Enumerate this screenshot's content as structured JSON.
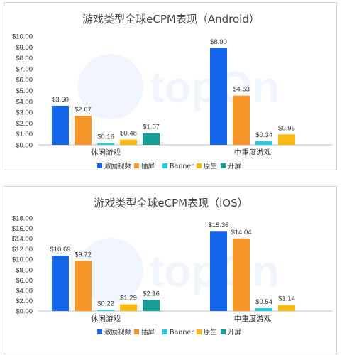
{
  "chart_data": [
    {
      "type": "bar",
      "title": "游戏类型全球eCPM表现（Android）",
      "categories": [
        "休闲游戏",
        "中重度游戏"
      ],
      "series": [
        {
          "name": "激励视频",
          "values": [
            3.6,
            8.9
          ],
          "labels": [
            "$3.60",
            "$8.90"
          ],
          "color": "#1466ea"
        },
        {
          "name": "插屏",
          "values": [
            2.67,
            4.53
          ],
          "labels": [
            "$2.67",
            "$4.53"
          ],
          "color": "#f7962b"
        },
        {
          "name": "Banner",
          "values": [
            0.16,
            0.34
          ],
          "labels": [
            "$0.16",
            "$0.34"
          ],
          "color": "#2bcbe6"
        },
        {
          "name": "原生",
          "values": [
            0.48,
            0.96
          ],
          "labels": [
            "$0.48",
            "$0.96"
          ],
          "color": "#fcb912"
        },
        {
          "name": "开屏",
          "values": [
            1.07,
            null
          ],
          "labels": [
            "$1.07",
            null
          ],
          "color": "#179d98"
        }
      ],
      "yticks": [
        "$0.00",
        "$1.00",
        "$2.00",
        "$3.00",
        "$4.00",
        "$5.00",
        "$6.00",
        "$7.00",
        "$8.00",
        "$9.00",
        "$10.00"
      ],
      "ylim": [
        0,
        10
      ],
      "ystep": 1,
      "grid": false,
      "legend_position": "bottom",
      "watermark": "topOn"
    },
    {
      "type": "bar",
      "title": "游戏类型全球eCPM表现（iOS）",
      "categories": [
        "休闲游戏",
        "中重度游戏"
      ],
      "series": [
        {
          "name": "激励视频",
          "values": [
            10.69,
            15.36
          ],
          "labels": [
            "$10.69",
            "$15.36"
          ],
          "color": "#1466ea"
        },
        {
          "name": "插屏",
          "values": [
            9.72,
            14.04
          ],
          "labels": [
            "$9.72",
            "$14.04"
          ],
          "color": "#f7962b"
        },
        {
          "name": "Banner",
          "values": [
            0.22,
            0.54
          ],
          "labels": [
            "$0.22",
            "$0.54"
          ],
          "color": "#2bcbe6"
        },
        {
          "name": "原生",
          "values": [
            1.29,
            1.14
          ],
          "labels": [
            "$1.29",
            "$1.14"
          ],
          "color": "#fcb912"
        },
        {
          "name": "开屏",
          "values": [
            2.16,
            null
          ],
          "labels": [
            "$2.16",
            null
          ],
          "color": "#179d98"
        }
      ],
      "yticks": [
        "$0.00",
        "$2.00",
        "$4.00",
        "$6.00",
        "$8.00",
        "$10.00",
        "$12.00",
        "$14.00",
        "$16.00",
        "$18.00"
      ],
      "ylim": [
        0,
        18
      ],
      "ystep": 2,
      "grid": false,
      "legend_position": "bottom",
      "watermark": "topOn"
    }
  ]
}
